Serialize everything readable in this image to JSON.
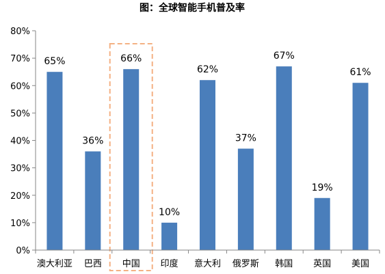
{
  "chart_data": {
    "type": "bar",
    "title": "图：全球智能手机普及率",
    "categories": [
      "澳大利亚",
      "巴西",
      "中国",
      "印度",
      "意大利",
      "俄罗斯",
      "韩国",
      "英国",
      "美国"
    ],
    "values": [
      65,
      36,
      66,
      10,
      62,
      37,
      67,
      19,
      61
    ],
    "data_labels": [
      "65%",
      "36%",
      "66%",
      "10%",
      "62%",
      "37%",
      "67%",
      "19%",
      "61%"
    ],
    "ylim": [
      0,
      80
    ],
    "y_ticks": [
      0,
      10,
      20,
      30,
      40,
      50,
      60,
      70,
      80
    ],
    "y_tick_labels": [
      "0%",
      "10%",
      "20%",
      "30%",
      "40%",
      "50%",
      "60%",
      "70%",
      "80%"
    ],
    "xlabel": "",
    "ylabel": "",
    "grid": false,
    "legend": "none",
    "highlighted_category": "中国",
    "colors": {
      "bar": "#4a7ebb",
      "highlight_box": "#f4b183",
      "axis": "#868686"
    }
  }
}
